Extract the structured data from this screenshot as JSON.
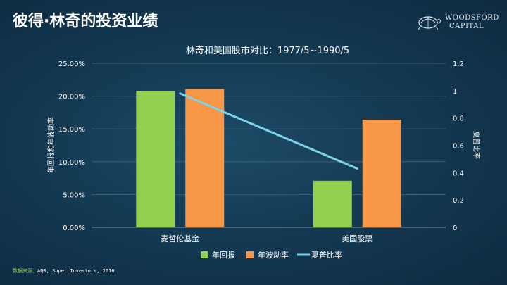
{
  "slide": {
    "title": "彼得·林奇的投资业绩",
    "logo_line1": "WOODSFORD",
    "logo_line2": "CAPITAL"
  },
  "source": {
    "label": "数据来源：",
    "text": "AQR, Super Investors, 2016"
  },
  "chart_data": {
    "type": "bar",
    "title": "林奇和美国股市对比：1977/5~1990/5",
    "categories": [
      "麦哲伦基金",
      "美国股票"
    ],
    "ylabel": "年回报和年波动率",
    "y2label": "夏普比率",
    "ylim": [
      0,
      25
    ],
    "y2lim": [
      0,
      1.2
    ],
    "yticks": [
      "0.00%",
      "5.00%",
      "10.00%",
      "15.00%",
      "20.00%",
      "25.00%"
    ],
    "y2ticks": [
      "0",
      "0.2",
      "0.4",
      "0.6",
      "0.8",
      "1",
      "1.2"
    ],
    "series": [
      {
        "name": "年回报",
        "kind": "bar",
        "axis": "left",
        "color": "#92d050",
        "values": [
          20.8,
          7.1
        ]
      },
      {
        "name": "年波动率",
        "kind": "bar",
        "axis": "left",
        "color": "#f79646",
        "values": [
          21.1,
          16.4
        ]
      },
      {
        "name": "夏普比率",
        "kind": "line",
        "axis": "right",
        "color": "#7dd3e8",
        "values": [
          0.98,
          0.43
        ]
      }
    ],
    "grid": true,
    "legend_position": "bottom"
  }
}
